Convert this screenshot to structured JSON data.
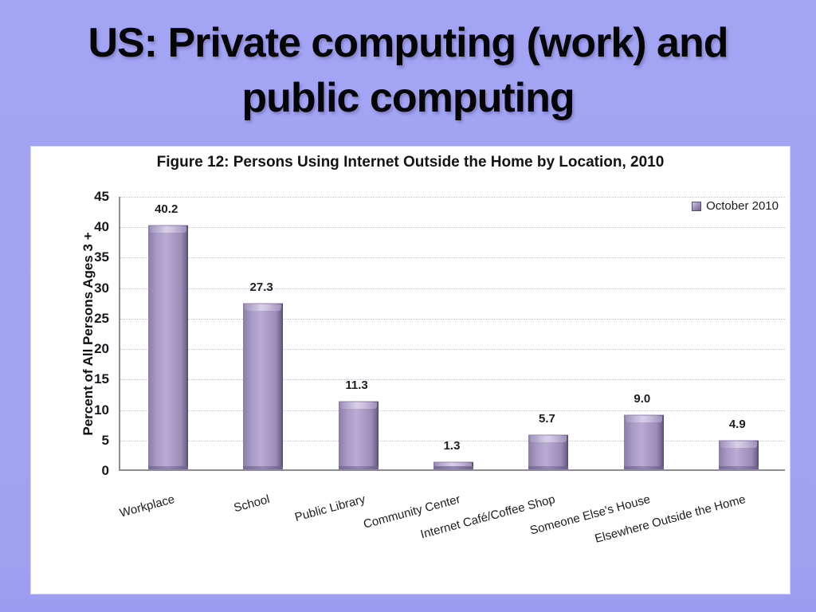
{
  "slide": {
    "title_lines": [
      "US: Private computing (work) and",
      "public computing"
    ],
    "background_color": "#a2a2f3"
  },
  "chart_data": {
    "type": "bar",
    "title": "Figure 12: Persons Using Internet Outside the Home by Location, 2010",
    "ylabel": "Percent of All Persons Ages 3 +",
    "xlabel": "",
    "ylim": [
      0,
      45
    ],
    "yticks": [
      45,
      40,
      35,
      30,
      25,
      20,
      15,
      10,
      5,
      0
    ],
    "grid": "dotted-horizontal",
    "legend_position": "top-right",
    "categories": [
      "Workplace",
      "School",
      "Public Library",
      "Community Center",
      "Internet Café/Coffee Shop",
      "Someone Else's House",
      "Elsewhere Outside the Home"
    ],
    "series": [
      {
        "name": "October 2010",
        "color": "#a89bc6",
        "values": [
          40.2,
          27.3,
          11.3,
          1.3,
          5.7,
          9.0,
          4.9
        ],
        "data_labels": [
          "40.2",
          "27.3",
          "11.3",
          "1.3",
          "5.7",
          "9.0",
          "4.9"
        ]
      }
    ]
  }
}
